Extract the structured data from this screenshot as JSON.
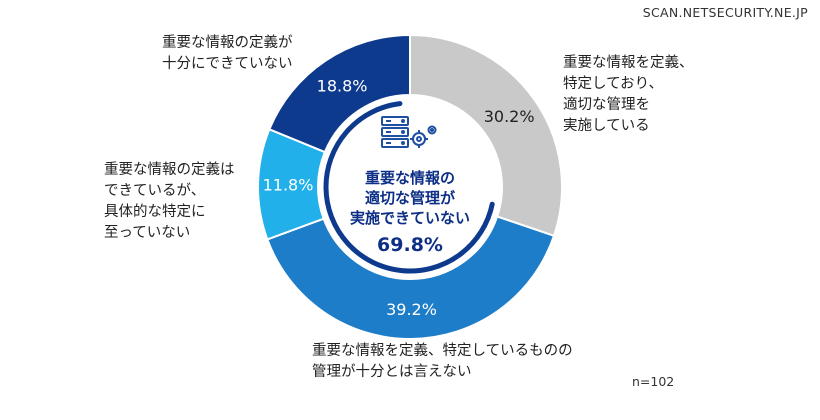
{
  "source_label": "SCAN.NETSECURITY.NE.JP",
  "sample_size": "n=102",
  "colors": {
    "gray": "#c9c9c9",
    "mid_blue": "#1e7dc8",
    "light_blue": "#22b0ea",
    "dark_blue": "#0e3a8e",
    "center_text": "#0d2f85",
    "ring": "#0e3a8e"
  },
  "center": {
    "icon": "server-gear-icon",
    "line1": "重要な情報の",
    "line2": "適切な管理が",
    "line3": "実施できていない",
    "value": "69.8%"
  },
  "chart_data": {
    "type": "pie",
    "donut": true,
    "start_angle": "12 o'clock, clockwise",
    "slices": [
      {
        "key": "gray",
        "value": 30.2,
        "value_label": "30.2%",
        "label_lines": [
          "重要な情報を定義、",
          "特定しており、",
          "適切な管理を",
          "実施している"
        ]
      },
      {
        "key": "mid",
        "value": 39.2,
        "value_label": "39.2%",
        "label_lines": [
          "重要な情報を定義、特定しているものの",
          "管理が十分とは言えない"
        ]
      },
      {
        "key": "light",
        "value": 11.8,
        "value_label": "11.8%",
        "label_lines": [
          "重要な情報の定義は",
          "できているが、",
          "具体的な特定に",
          "至っていない"
        ]
      },
      {
        "key": "dark",
        "value": 18.8,
        "value_label": "18.8%",
        "label_lines": [
          "重要な情報の定義が",
          "十分にできていない"
        ]
      }
    ]
  }
}
